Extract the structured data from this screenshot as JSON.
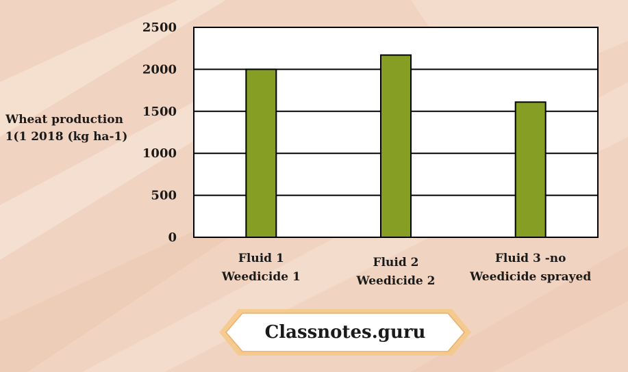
{
  "chart_data": {
    "type": "bar",
    "categories": [
      [
        "Fluid 1",
        "Weedicide 1"
      ],
      [
        "Fluid 2",
        "Weedicide 2"
      ],
      [
        "Fluid 3 -no",
        "Weedicide sprayed"
      ]
    ],
    "values": [
      2000,
      2170,
      1610
    ],
    "ylabel": [
      "Wheat production",
      "1(1 2018 (kg ha-1)"
    ],
    "yticks": [
      "0",
      "500",
      "1000",
      "1500",
      "2000",
      "2500"
    ],
    "ylim": [
      0,
      2500
    ],
    "grid": true,
    "bar_color": "#879e25",
    "legend": "none"
  },
  "watermark": {
    "text": "Classnotes.guru"
  },
  "colors": {
    "background": "#f2d6c4",
    "plot_background": "#ffffff",
    "border": "#000000"
  }
}
